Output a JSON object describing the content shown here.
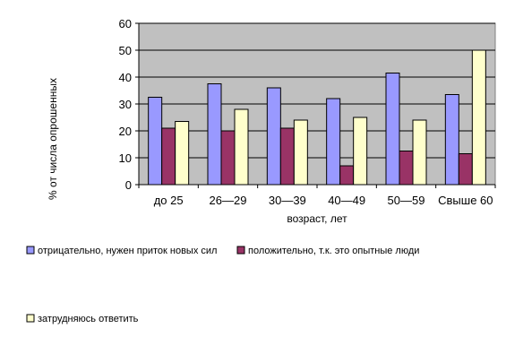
{
  "chart_data": {
    "type": "bar",
    "title": "",
    "xlabel": "возраст, лет",
    "ylabel": "% от числа опрошенных",
    "ylim": [
      0,
      60
    ],
    "yticks": [
      0,
      10,
      20,
      30,
      40,
      50,
      60
    ],
    "grid": true,
    "legend_position": "bottom",
    "categories": [
      "до 25",
      "26—29",
      "30—39",
      "40—49",
      "50—59",
      "Свыше 60"
    ],
    "series": [
      {
        "name": "отрицательно, нужен приток новых сил",
        "color": "#9999FF",
        "values": [
          32.5,
          37.5,
          36,
          32,
          41.5,
          33.5
        ]
      },
      {
        "name": "положительно, т.к. это опытные люди",
        "color": "#993366",
        "values": [
          21,
          20,
          21,
          7,
          12.5,
          11.5
        ]
      },
      {
        "name": "затрудняюсь ответить",
        "color": "#FFFFCC",
        "values": [
          23.5,
          28,
          24,
          25,
          24,
          50
        ]
      }
    ],
    "plot_background": "#C0C0C0"
  }
}
